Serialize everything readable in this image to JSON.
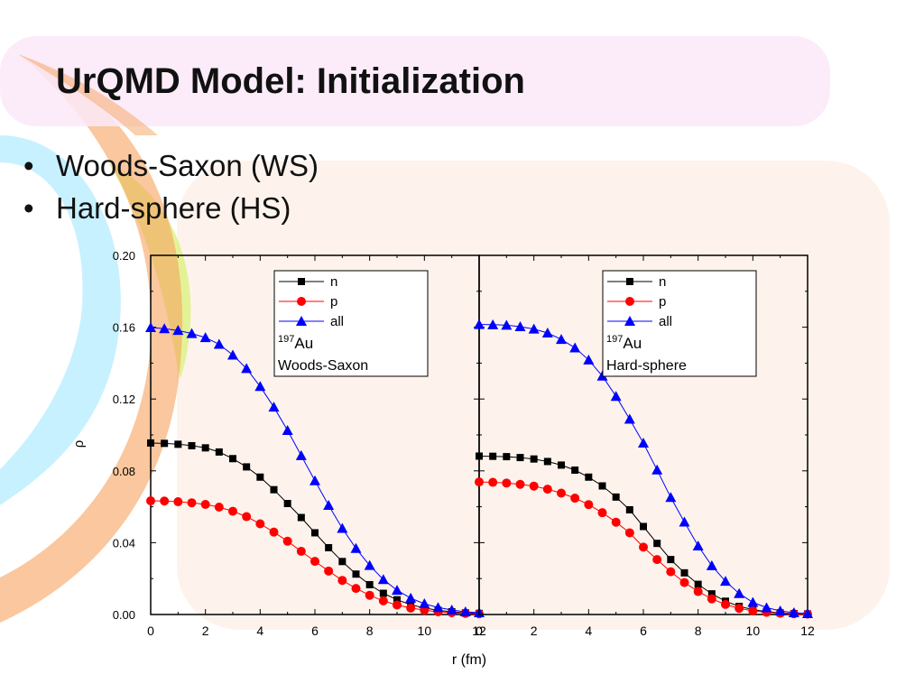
{
  "slide": {
    "title": "UrQMD Model: Initialization",
    "bullets": [
      "Woods-Saxon (WS)",
      "Hard-sphere (HS)"
    ]
  },
  "colors": {
    "n": "#000000",
    "p": "#ff0000",
    "all": "#0000ff",
    "ribbon_orange": "#f6a25e",
    "ribbon_cyan": "#bdefff",
    "ribbon_lime": "#d9f27a",
    "panel_bg": "#fdf3ec",
    "title_band": "#fbe9f8"
  },
  "chart_data": {
    "type": "line",
    "ylabel": "ρ",
    "xlabel": "r (fm)",
    "ylim": [
      0,
      0.2
    ],
    "yticks": [
      "0.00",
      "0.04",
      "0.08",
      "0.12",
      "0.16",
      "0.20"
    ],
    "xticks": [
      "0",
      "2",
      "4",
      "6",
      "8",
      "10",
      "12"
    ],
    "x": [
      0,
      0.5,
      1,
      1.5,
      2,
      2.5,
      3,
      3.5,
      4,
      4.5,
      5,
      5.5,
      6,
      6.5,
      7,
      7.5,
      8,
      8.5,
      9,
      9.5,
      10,
      10.5,
      11,
      11.5,
      12
    ],
    "panels": [
      {
        "xlim": [
          0,
          12
        ],
        "legend_location": "top-right",
        "nucleus_mass": "197",
        "nucleus_symbol": "Au",
        "model": "Woods-Saxon",
        "series": [
          {
            "name": "n",
            "marker": "square",
            "values": [
              0.0955,
              0.0953,
              0.0948,
              0.094,
              0.0928,
              0.0905,
              0.0868,
              0.0822,
              0.0765,
              0.0695,
              0.0618,
              0.054,
              0.0455,
              0.0372,
              0.0295,
              0.0225,
              0.0166,
              0.0118,
              0.0082,
              0.0055,
              0.0036,
              0.0023,
              0.0015,
              0.0009,
              0.0006
            ]
          },
          {
            "name": "p",
            "marker": "circle",
            "values": [
              0.0633,
              0.0632,
              0.0628,
              0.0622,
              0.0613,
              0.0598,
              0.0575,
              0.0545,
              0.0505,
              0.0459,
              0.0408,
              0.0352,
              0.0296,
              0.0242,
              0.019,
              0.0145,
              0.0107,
              0.0076,
              0.0053,
              0.0036,
              0.0024,
              0.0015,
              0.001,
              0.0006,
              0.0004
            ]
          },
          {
            "name": "all",
            "marker": "triangle",
            "values": [
              0.1598,
              0.1592,
              0.1582,
              0.1565,
              0.1542,
              0.1505,
              0.1445,
              0.137,
              0.127,
              0.1155,
              0.1025,
              0.0885,
              0.0745,
              0.0608,
              0.048,
              0.0368,
              0.0273,
              0.0195,
              0.0135,
              0.0091,
              0.006,
              0.0039,
              0.0025,
              0.0015,
              0.001
            ]
          }
        ]
      },
      {
        "xlim": [
          0,
          12
        ],
        "legend_location": "top-right",
        "nucleus_mass": "197",
        "nucleus_symbol": "Au",
        "model": "Hard-sphere",
        "series": [
          {
            "name": "n",
            "marker": "square",
            "values": [
              0.0882,
              0.0881,
              0.0879,
              0.0874,
              0.0866,
              0.0852,
              0.0832,
              0.0804,
              0.0765,
              0.0716,
              0.0654,
              0.0583,
              0.049,
              0.0396,
              0.0306,
              0.0232,
              0.0168,
              0.0115,
              0.0074,
              0.0045,
              0.0027,
              0.0016,
              0.0009,
              0.0005,
              0.0003
            ]
          },
          {
            "name": "p",
            "marker": "circle",
            "values": [
              0.0738,
              0.0736,
              0.0732,
              0.0725,
              0.0715,
              0.0698,
              0.0676,
              0.0648,
              0.0612,
              0.0567,
              0.0514,
              0.0455,
              0.0375,
              0.0306,
              0.0238,
              0.0178,
              0.0128,
              0.0087,
              0.0056,
              0.0034,
              0.002,
              0.0012,
              0.0007,
              0.0004,
              0.0002
            ]
          },
          {
            "name": "all",
            "marker": "triangle",
            "values": [
              0.1615,
              0.1614,
              0.1611,
              0.1603,
              0.159,
              0.1568,
              0.1532,
              0.1485,
              0.1418,
              0.1328,
              0.1215,
              0.1088,
              0.0955,
              0.0805,
              0.0652,
              0.0515,
              0.0382,
              0.0272,
              0.0185,
              0.0117,
              0.0068,
              0.0038,
              0.002,
              0.001,
              0.0005
            ]
          }
        ]
      }
    ]
  }
}
